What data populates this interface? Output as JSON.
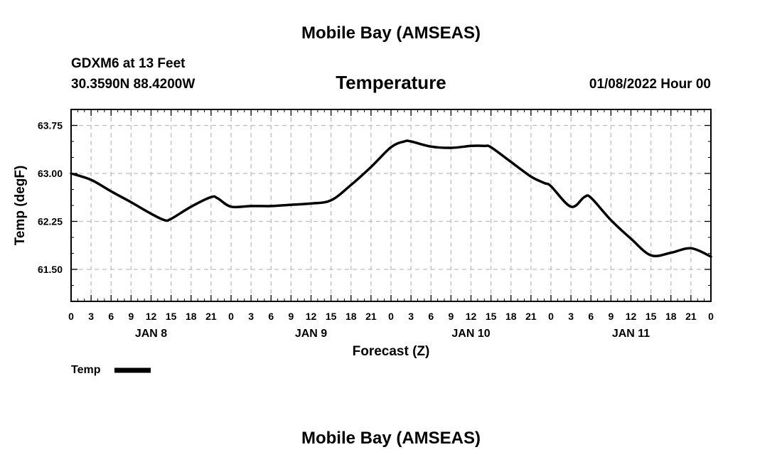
{
  "header": {
    "title": "Mobile Bay (AMSEAS)",
    "station": "GDXM6 at 13 Feet",
    "position": "30.3590N  88.4200W",
    "forecast_time": "01/08/2022 Hour 00"
  },
  "footer": {
    "title": "Mobile Bay (AMSEAS)"
  },
  "chart_data": {
    "type": "line",
    "title": "Temperature",
    "xlabel": "Forecast (Z)",
    "ylabel": "Temp (degF)",
    "ylim": [
      61.0,
      64.0
    ],
    "xlim": [
      0,
      96
    ],
    "x_units": "hours since 01/08/2022 00Z",
    "y_ticks": [
      "63.75",
      "63.00",
      "62.25",
      "61.50"
    ],
    "y_tick_values": [
      63.75,
      63.0,
      62.25,
      61.5
    ],
    "x_tick_labels": [
      "0",
      "3",
      "6",
      "9",
      "12",
      "15",
      "18",
      "21",
      "0",
      "3",
      "6",
      "9",
      "12",
      "15",
      "18",
      "21",
      "0",
      "3",
      "6",
      "9",
      "12",
      "15",
      "18",
      "21",
      "0",
      "3",
      "6",
      "9",
      "12",
      "15",
      "18",
      "21",
      "0"
    ],
    "x_tick_hours": [
      0,
      3,
      6,
      9,
      12,
      15,
      18,
      21,
      24,
      27,
      30,
      33,
      36,
      39,
      42,
      45,
      48,
      51,
      54,
      57,
      60,
      63,
      66,
      69,
      72,
      75,
      78,
      81,
      84,
      87,
      90,
      93,
      96
    ],
    "day_labels": [
      "JAN 8",
      "JAN 9",
      "JAN 10",
      "JAN 11"
    ],
    "day_label_hours": [
      12,
      36,
      60,
      84
    ],
    "grid": true,
    "legend_position": "bottom-left",
    "series": [
      {
        "name": "Temp",
        "color": "#000000",
        "x": [
          0,
          3,
          6,
          9,
          12,
          14,
          15,
          18,
          21,
          22,
          24,
          27,
          30,
          33,
          36,
          39,
          42,
          45,
          48,
          50,
          51,
          54,
          57,
          60,
          62,
          63,
          66,
          69,
          71,
          72,
          75,
          77,
          78,
          81,
          84,
          87,
          90,
          93,
          96
        ],
        "y": [
          63.0,
          62.9,
          62.72,
          62.55,
          62.37,
          62.27,
          62.29,
          62.48,
          62.63,
          62.61,
          62.48,
          62.49,
          62.49,
          62.51,
          62.53,
          62.58,
          62.82,
          63.1,
          63.41,
          63.5,
          63.5,
          63.42,
          63.4,
          63.43,
          63.43,
          63.41,
          63.18,
          62.95,
          62.85,
          62.8,
          62.48,
          62.63,
          62.62,
          62.27,
          61.98,
          61.72,
          61.76,
          61.83,
          61.7
        ]
      }
    ]
  }
}
